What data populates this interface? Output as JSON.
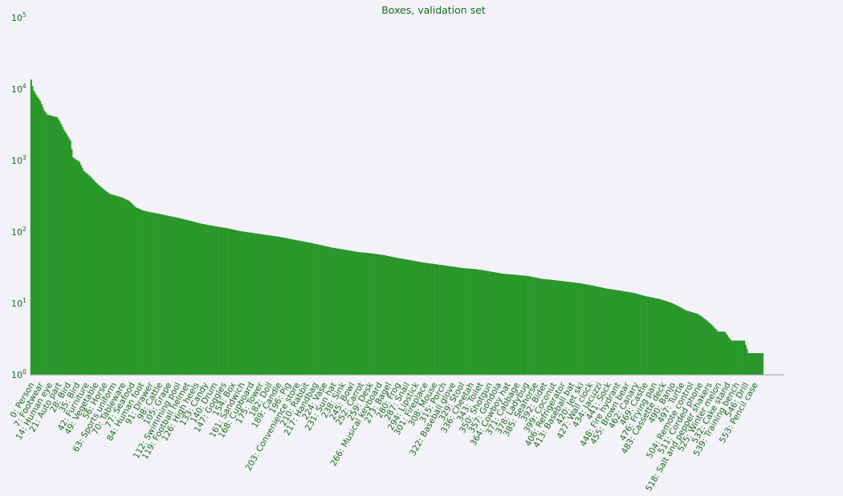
{
  "chart_data": {
    "type": "bar",
    "title": "Boxes, validation set",
    "xlabel": "",
    "ylabel": "",
    "yscale": "log",
    "ylim": [
      1,
      100000
    ],
    "ytick_labels": [
      {
        "base": "10",
        "exp": "0",
        "value": 1
      },
      {
        "base": "10",
        "exp": "1",
        "value": 10
      },
      {
        "base": "10",
        "exp": "2",
        "value": 100
      },
      {
        "base": "10",
        "exp": "3",
        "value": 1000
      },
      {
        "base": "10",
        "exp": "4",
        "value": 10000
      },
      {
        "base": "10",
        "exp": "5",
        "value": 100000
      }
    ],
    "grid": false,
    "legend": "none",
    "bar_color": "#2ca02c",
    "text_color": "#1a6b1a",
    "category_count": 560,
    "category_labels": [
      {
        "index": 0,
        "label": "0: Person"
      },
      {
        "index": 7,
        "label": "7: Footwear"
      },
      {
        "index": 14,
        "label": "14: Human eye"
      },
      {
        "index": 21,
        "label": "21: Auto part"
      },
      {
        "index": 28,
        "label": "28: Bird"
      },
      {
        "index": 35,
        "label": "35: Bird"
      },
      {
        "index": 42,
        "label": "42: Furniture"
      },
      {
        "index": 49,
        "label": "49: Vegetable"
      },
      {
        "index": 56,
        "label": "56: Horse"
      },
      {
        "index": 63,
        "label": "63: Sports uniform"
      },
      {
        "index": 70,
        "label": "70: Tableware"
      },
      {
        "index": 77,
        "label": "77: Seafood"
      },
      {
        "index": 84,
        "label": "84: Human foot"
      },
      {
        "index": 91,
        "label": "91: Drawer"
      },
      {
        "index": 98,
        "label": "98: Cattle"
      },
      {
        "index": 105,
        "label": "105: Grape"
      },
      {
        "index": 112,
        "label": "112: Swimming pool"
      },
      {
        "index": 119,
        "label": "119: Football helmet"
      },
      {
        "index": 126,
        "label": "126: High heels"
      },
      {
        "index": 133,
        "label": "133: Candy"
      },
      {
        "index": 140,
        "label": "140: Drum"
      },
      {
        "index": 147,
        "label": "147: Goggles"
      },
      {
        "index": 154,
        "label": "154: Box"
      },
      {
        "index": 161,
        "label": "161: Sandwich"
      },
      {
        "index": 168,
        "label": "168: Cupboard"
      },
      {
        "index": 175,
        "label": "175: Tower"
      },
      {
        "index": 182,
        "label": "182: Doll"
      },
      {
        "index": 189,
        "label": "189: Candle"
      },
      {
        "index": 196,
        "label": "196: Pig"
      },
      {
        "index": 203,
        "label": "203: Convenience store"
      },
      {
        "index": 210,
        "label": "210: Rabbit"
      },
      {
        "index": 217,
        "label": "217: Handbag"
      },
      {
        "index": 224,
        "label": "224: Vase"
      },
      {
        "index": 231,
        "label": "231: Sun hat"
      },
      {
        "index": 238,
        "label": "238: Sink"
      },
      {
        "index": 245,
        "label": "245: Bowl"
      },
      {
        "index": 252,
        "label": "252: Carrot"
      },
      {
        "index": 259,
        "label": "259: Desk"
      },
      {
        "index": 266,
        "label": "266: Musical keyboard"
      },
      {
        "index": 273,
        "label": "273: Bagel"
      },
      {
        "index": 280,
        "label": "280: Frog"
      },
      {
        "index": 287,
        "label": "287: Snail"
      },
      {
        "index": 294,
        "label": "294: Lipstick"
      },
      {
        "index": 301,
        "label": "301: Fireplace"
      },
      {
        "index": 308,
        "label": "308: Mouse"
      },
      {
        "index": 315,
        "label": "315: Porch"
      },
      {
        "index": 322,
        "label": "322: Baseball glove"
      },
      {
        "index": 329,
        "label": "329: Stool"
      },
      {
        "index": 336,
        "label": "336: Cheetah"
      },
      {
        "index": 343,
        "label": "343: Toilet"
      },
      {
        "index": 350,
        "label": "350: Shotgun"
      },
      {
        "index": 357,
        "label": "357: Gondola"
      },
      {
        "index": 364,
        "label": "364: Cowboy hat"
      },
      {
        "index": 371,
        "label": "371: Cabbage"
      },
      {
        "index": 378,
        "label": "378: Ladybug"
      },
      {
        "index": 385,
        "label": "385: Seahorse"
      },
      {
        "index": 392,
        "label": "392: Bidet"
      },
      {
        "index": 399,
        "label": "399: Coconut"
      },
      {
        "index": 406,
        "label": "406: Refrigerator"
      },
      {
        "index": 413,
        "label": "413: Baseball bat"
      },
      {
        "index": 420,
        "label": "420: Jet ski"
      },
      {
        "index": 427,
        "label": "427: Wall clock"
      },
      {
        "index": 434,
        "label": "434: Jacuzzi"
      },
      {
        "index": 441,
        "label": "441: Sock"
      },
      {
        "index": 448,
        "label": "448: Fire hydrant"
      },
      {
        "index": 455,
        "label": "455: Brown bear"
      },
      {
        "index": 462,
        "label": "462: Canary"
      },
      {
        "index": 469,
        "label": "469: Castle"
      },
      {
        "index": 476,
        "label": "476: Frying pan"
      },
      {
        "index": 483,
        "label": "483: Cassette deck"
      },
      {
        "index": 490,
        "label": "490: Banjo"
      },
      {
        "index": 497,
        "label": "497: Turtle"
      },
      {
        "index": 504,
        "label": "504: Remote control"
      },
      {
        "index": 511,
        "label": "511: Corded phone"
      },
      {
        "index": 518,
        "label": "518: Salt and pepper shakers"
      },
      {
        "index": 525,
        "label": "525: Winter melon"
      },
      {
        "index": 532,
        "label": "532: Cake stand"
      },
      {
        "index": 539,
        "label": "539: Training bench"
      },
      {
        "index": 546,
        "label": "546: Drill"
      },
      {
        "index": 553,
        "label": "553: Pencil case"
      }
    ],
    "value_profile": [
      [
        0,
        13500
      ],
      [
        1,
        11000
      ],
      [
        2,
        9500
      ],
      [
        4,
        8200
      ],
      [
        7,
        6800
      ],
      [
        10,
        5000
      ],
      [
        12,
        4400
      ],
      [
        20,
        4000
      ],
      [
        22,
        3500
      ],
      [
        25,
        2700
      ],
      [
        30,
        1900
      ],
      [
        32,
        1100
      ],
      [
        37,
        950
      ],
      [
        40,
        720
      ],
      [
        45,
        600
      ],
      [
        50,
        480
      ],
      [
        55,
        400
      ],
      [
        60,
        340
      ],
      [
        65,
        320
      ],
      [
        70,
        300
      ],
      [
        75,
        270
      ],
      [
        80,
        220
      ],
      [
        85,
        200
      ],
      [
        90,
        190
      ],
      [
        100,
        175
      ],
      [
        110,
        160
      ],
      [
        120,
        145
      ],
      [
        130,
        130
      ],
      [
        140,
        120
      ],
      [
        150,
        112
      ],
      [
        160,
        102
      ],
      [
        170,
        96
      ],
      [
        180,
        90
      ],
      [
        190,
        85
      ],
      [
        200,
        78
      ],
      [
        210,
        72
      ],
      [
        220,
        66
      ],
      [
        230,
        60
      ],
      [
        240,
        56
      ],
      [
        250,
        52
      ],
      [
        260,
        50
      ],
      [
        270,
        47
      ],
      [
        280,
        43
      ],
      [
        290,
        40
      ],
      [
        300,
        37
      ],
      [
        310,
        35
      ],
      [
        320,
        33
      ],
      [
        330,
        31
      ],
      [
        340,
        30
      ],
      [
        350,
        28
      ],
      [
        360,
        26
      ],
      [
        370,
        25
      ],
      [
        380,
        24
      ],
      [
        390,
        22
      ],
      [
        400,
        21
      ],
      [
        410,
        20
      ],
      [
        420,
        19
      ],
      [
        430,
        17.5
      ],
      [
        440,
        16
      ],
      [
        450,
        15
      ],
      [
        460,
        14
      ],
      [
        470,
        12.5
      ],
      [
        480,
        11.5
      ],
      [
        490,
        10
      ],
      [
        495,
        9
      ],
      [
        500,
        8
      ],
      [
        505,
        7.5
      ],
      [
        510,
        7
      ],
      [
        515,
        6
      ],
      [
        520,
        5
      ],
      [
        525,
        4
      ],
      [
        530,
        4
      ],
      [
        535,
        3
      ],
      [
        540,
        3
      ],
      [
        545,
        3
      ],
      [
        548,
        2
      ],
      [
        559,
        2
      ]
    ]
  }
}
